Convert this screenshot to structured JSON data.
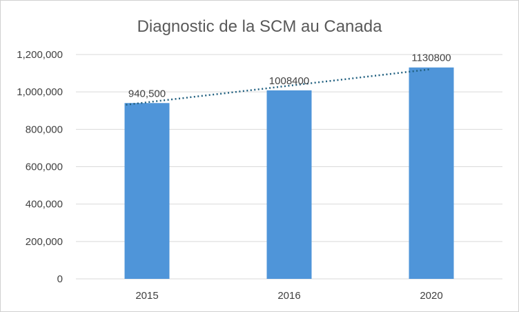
{
  "chart_data": {
    "type": "bar",
    "title": "Diagnostic de la SCM au Canada",
    "categories": [
      "2015",
      "2016",
      "2020"
    ],
    "values": [
      940500,
      1008400,
      1130800
    ],
    "data_labels": [
      "940,500",
      "1008400",
      "1130800"
    ],
    "ylim": [
      0,
      1200000
    ],
    "yticks": [
      0,
      200000,
      400000,
      600000,
      800000,
      1000000,
      1200000
    ],
    "ytick_labels": [
      "0",
      "200,000",
      "400,000",
      "600,000",
      "800,000",
      "1,000,000",
      "1,200,000"
    ],
    "grid": true,
    "trendline": {
      "type": "linear",
      "style": "dotted",
      "color": "#1f5f7f"
    },
    "colors": {
      "bar": "#4f95d9",
      "trendline": "#1f5f7f"
    }
  }
}
